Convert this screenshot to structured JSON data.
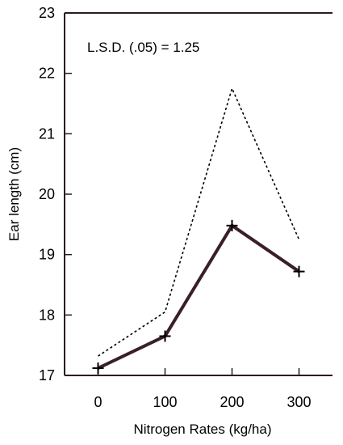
{
  "chart_data": {
    "type": "line",
    "title": "",
    "xlabel": "Nitrogen Rates (kg/ha)",
    "ylabel": "Ear length (cm)",
    "annotation": "L.S.D. (.05) = 1.25",
    "x": [
      0,
      100,
      200,
      300
    ],
    "xticks": [
      "0",
      "100",
      "200",
      "300"
    ],
    "xlim": [
      -50,
      350
    ],
    "ylim": [
      17,
      23
    ],
    "yticks": [
      "17",
      "18",
      "19",
      "20",
      "21",
      "22",
      "23"
    ],
    "grid": false,
    "series": [
      {
        "style": "solid",
        "color": "#3a1e2a",
        "marker": "plus",
        "values": [
          17.12,
          17.65,
          19.48,
          18.72
        ]
      },
      {
        "style": "dotted",
        "color": "#000000",
        "marker": "none",
        "values": [
          17.32,
          18.05,
          21.75,
          19.25
        ]
      }
    ]
  }
}
